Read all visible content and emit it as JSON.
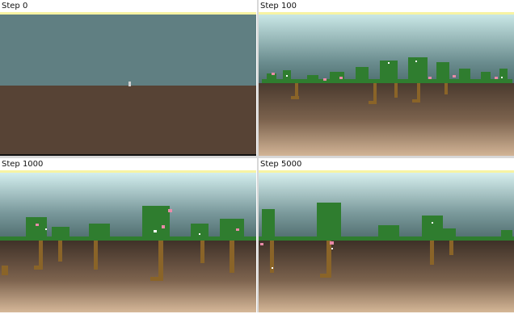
{
  "panels": [
    {
      "label": "Step 0"
    },
    {
      "label": "Step 100"
    },
    {
      "label": "Step 1000"
    },
    {
      "label": "Step 5000"
    }
  ],
  "colors": {
    "sun_strip": "#f7f3a3",
    "sky_top": "#b9dfe0",
    "sky_bottom": "#5c7d80",
    "soil_top": "#574335",
    "soil_bottom": "#c8a98a",
    "leaf": "#2f7d2f",
    "leaf_dark": "#1f5a22",
    "root": "#8a6428",
    "flower": "#e98aa8",
    "seed": "#ffffff"
  }
}
